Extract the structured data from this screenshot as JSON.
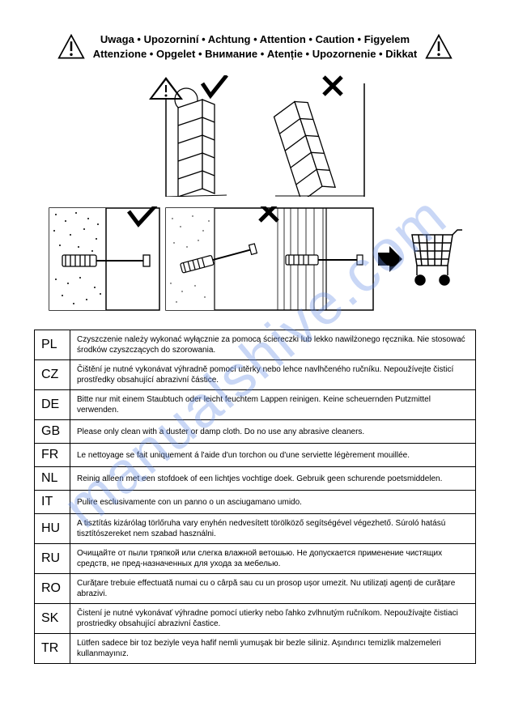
{
  "watermark": "manualshive.com",
  "header": {
    "line1": "Uwaga • Upozorniní • Achtung • Attention • Caution • Figyelem",
    "line2": "Attenzione • Opgelet • Внимание • Atenție • Upozornenie • Dikkat"
  },
  "table": {
    "rows": [
      {
        "code": "PL",
        "text": "Czyszczenie należy wykonać wyłącznie za pomocą ściereczki lub lekko nawilżonego ręcznika. Nie stosować środków czyszczących do szorowania."
      },
      {
        "code": "CZ",
        "text": "Čištění je nutné vykonávat výhradně pomocí utěrky nebo lehce navlhčeného ručníku. Nepoužívejte čisticí prostředky obsahující abrazivní částice."
      },
      {
        "code": "DE",
        "text": "Bitte nur mit einem Staubtuch oder leicht feuchtem Lappen reinigen. Keine scheuernden Putzmittel verwenden."
      },
      {
        "code": "GB",
        "text": "Please only clean with a duster or damp cloth. Do no use any abrasive cleaners."
      },
      {
        "code": "FR",
        "text": "Le nettoyage se fait uniquement á l'aide d'un torchon ou d'une serviette légèrement mouillée."
      },
      {
        "code": "NL",
        "text": "Reinig alleen met een stofdoek of een lichtjes vochtige doek. Gebruik geen schurende poetsmiddelen."
      },
      {
        "code": "IT",
        "text": "Pulire esclusivamente con un panno o un asciugamano umido."
      },
      {
        "code": "HU",
        "text": "A tisztítás kizárólag törlőruha vary enyhén nedvesített törölköző segítségével végezhető. Súroló hatású tisztítószereket nem szabad használni."
      },
      {
        "code": "RU",
        "text": "Очищайте от пыли тряпкой или слегка влажной ветошью. Не допускается применение чистящих средств, не пред-назначенных для ухода за мебелью."
      },
      {
        "code": "RO",
        "text": "Curățare trebuie effectuată numai cu o cârpă sau cu un prosop ușor umezit. Nu utilizați agenți de curățare abrazivi."
      },
      {
        "code": "SK",
        "text": "Čistení je nutné vykonávať výhradne pomocí utierky nebo ľahko zvlhnutým ručníkom. Nepoužívajte čistiaci prostriedky obsahující abrazivní častice."
      },
      {
        "code": "TR",
        "text": "Lütfen sadece bir toz beziyle veya hafif nemli yumuşak bir bezle siliniz. Aşındırıcı temizlik malzemeleri kullanmayınız."
      }
    ]
  },
  "colors": {
    "text": "#000000",
    "border": "#000000",
    "background": "#ffffff",
    "watermark": "rgba(100,140,230,0.35)"
  }
}
